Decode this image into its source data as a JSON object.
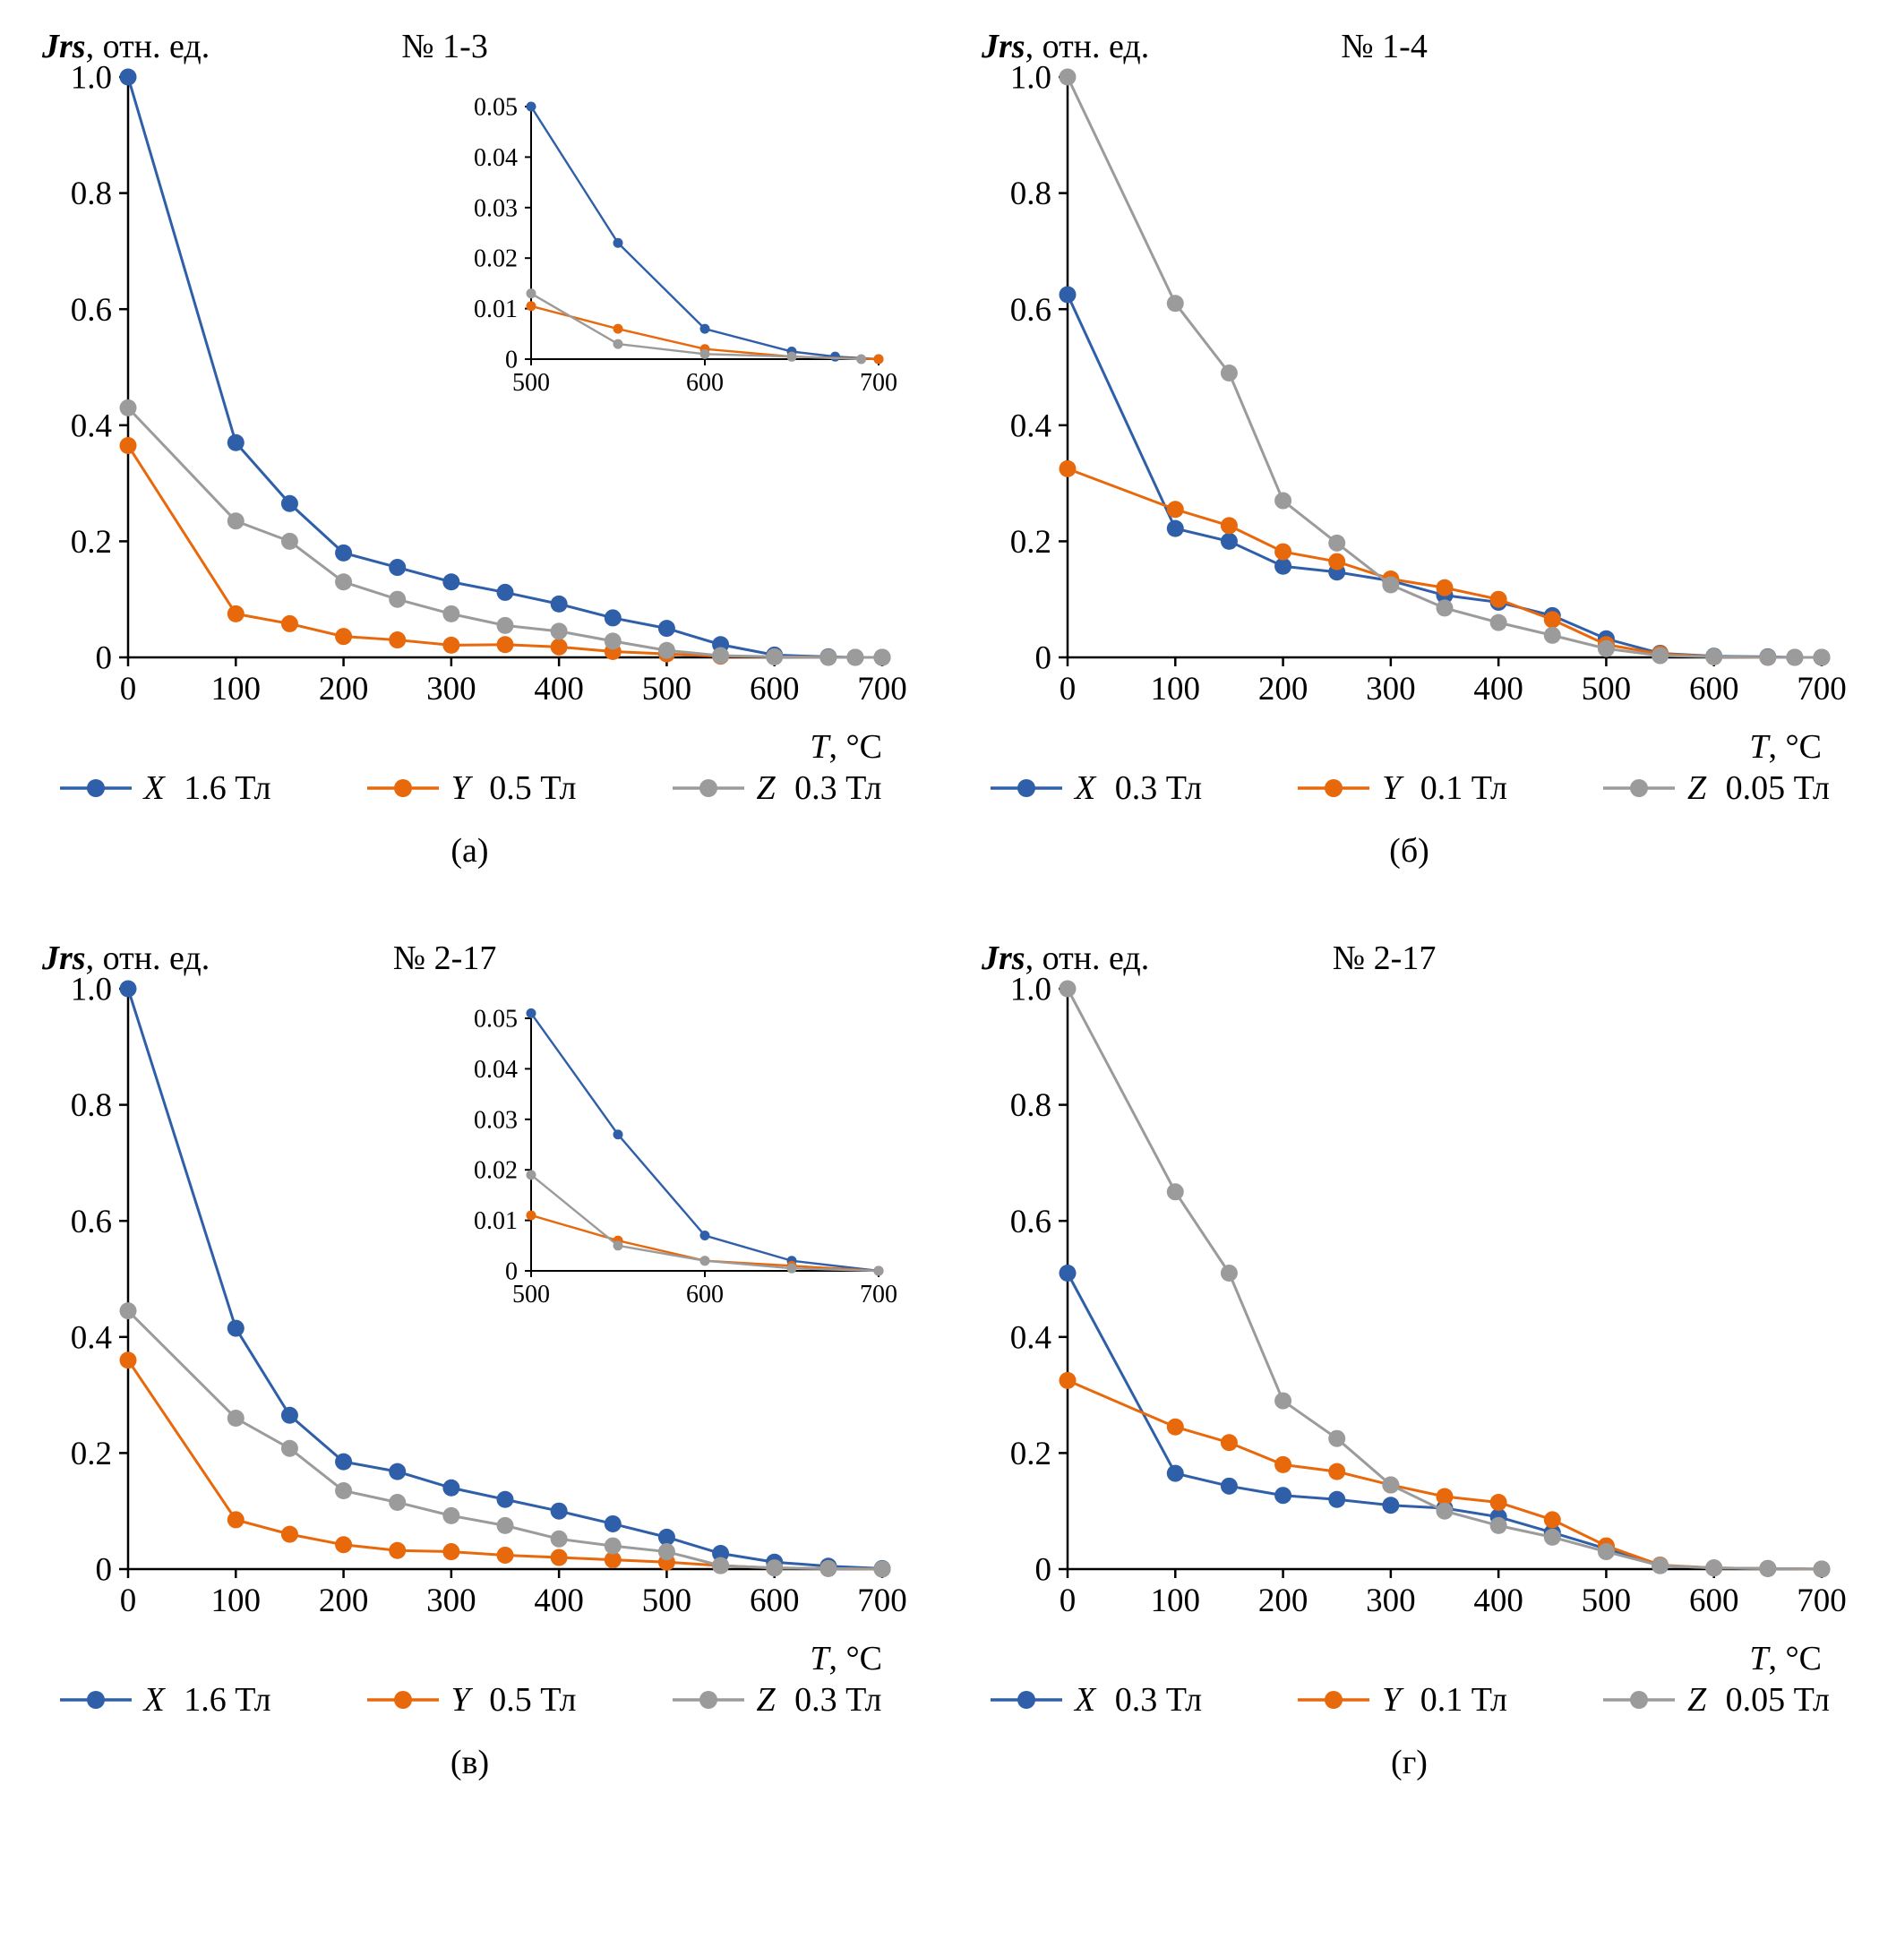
{
  "palette": {
    "blue": "#2f5fa8",
    "orange": "#e8680c",
    "gray": "#9b9b9b"
  },
  "labels": {
    "ylabel_main": "Jrs",
    "ylabel_rest": ", отн. ед.",
    "xlabel_main": "T",
    "xlabel_rest": ", °C"
  },
  "chart_data": [
    {
      "id": "a",
      "type": "line",
      "title": "№ 1-3",
      "caption": "(а)",
      "xlabel": "T, °C",
      "ylabel": "Jrs, отн. ед.",
      "xlim": [
        0,
        700
      ],
      "ylim": [
        0,
        1.0
      ],
      "grid": false,
      "legend_position": "bottom",
      "xticks": [
        [
          0,
          "0"
        ],
        [
          100,
          "100"
        ],
        [
          200,
          "200"
        ],
        [
          300,
          "300"
        ],
        [
          400,
          "400"
        ],
        [
          500,
          "500"
        ],
        [
          600,
          "600"
        ],
        [
          700,
          "700"
        ]
      ],
      "yticks": [
        [
          0,
          "0"
        ],
        [
          0.2,
          "0.2"
        ],
        [
          0.4,
          "0.4"
        ],
        [
          0.6,
          "0.6"
        ],
        [
          0.8,
          "0.8"
        ],
        [
          1.0,
          "1.0"
        ]
      ],
      "series": [
        {
          "name": "X 1.6 Тл",
          "label_var": "X",
          "label_rest": " 1.6 Тл",
          "color": "blue",
          "x": [
            0,
            100,
            150,
            200,
            250,
            300,
            350,
            400,
            450,
            500,
            550,
            600,
            650,
            675,
            700
          ],
          "y": [
            1.0,
            0.37,
            0.265,
            0.18,
            0.155,
            0.13,
            0.112,
            0.092,
            0.068,
            0.05,
            0.022,
            0.004,
            0.001,
            0.0,
            0.0
          ]
        },
        {
          "name": "Y 0.5 Тл",
          "label_var": "Y",
          "label_rest": " 0.5 Тл",
          "color": "orange",
          "x": [
            0,
            100,
            150,
            200,
            250,
            300,
            350,
            400,
            450,
            500,
            550,
            600,
            650,
            675,
            700
          ],
          "y": [
            0.365,
            0.075,
            0.058,
            0.036,
            0.03,
            0.021,
            0.022,
            0.018,
            0.01,
            0.006,
            0.002,
            0.001,
            0.0,
            0.0,
            0.0
          ]
        },
        {
          "name": "Z 0.3 Тл",
          "label_var": "Z",
          "label_rest": " 0.3 Тл",
          "color": "gray",
          "x": [
            0,
            100,
            150,
            200,
            250,
            300,
            350,
            400,
            450,
            500,
            550,
            600,
            650,
            675,
            700
          ],
          "y": [
            0.43,
            0.235,
            0.2,
            0.13,
            0.1,
            0.075,
            0.055,
            0.045,
            0.028,
            0.012,
            0.003,
            0.001,
            0.0,
            0.0,
            0.0
          ]
        }
      ],
      "inset": {
        "xlim": [
          500,
          700
        ],
        "ylim": [
          0,
          0.05
        ],
        "xticks": [
          [
            500,
            "500"
          ],
          [
            600,
            "600"
          ],
          [
            700,
            "700"
          ]
        ],
        "yticks": [
          [
            0,
            "0"
          ],
          [
            0.01,
            "0.01"
          ],
          [
            0.02,
            "0.02"
          ],
          [
            0.03,
            "0.03"
          ],
          [
            0.04,
            "0.04"
          ],
          [
            0.05,
            "0.05"
          ]
        ],
        "series": [
          {
            "name": "X 1.6 Тл",
            "color": "blue",
            "x": [
              500,
              550,
              600,
              650,
              675,
              700
            ],
            "y": [
              0.05,
              0.023,
              0.006,
              0.0015,
              0.0005,
              0.0
            ]
          },
          {
            "name": "Y 0.5 Тл",
            "color": "orange",
            "x": [
              500,
              550,
              600,
              650,
              700
            ],
            "y": [
              0.0105,
              0.006,
              0.002,
              0.0005,
              0.0
            ]
          },
          {
            "name": "Z 0.3 Тл",
            "color": "gray",
            "x": [
              500,
              550,
              600,
              650,
              690
            ],
            "y": [
              0.013,
              0.003,
              0.001,
              0.0005,
              0.0
            ]
          }
        ]
      }
    },
    {
      "id": "b",
      "type": "line",
      "title": "№ 1-4",
      "caption": "(б)",
      "xlabel": "T, °C",
      "ylabel": "Jrs, отн. ед.",
      "xlim": [
        0,
        700
      ],
      "ylim": [
        0,
        1.0
      ],
      "grid": false,
      "legend_position": "bottom",
      "xticks": [
        [
          0,
          "0"
        ],
        [
          100,
          "100"
        ],
        [
          200,
          "200"
        ],
        [
          300,
          "300"
        ],
        [
          400,
          "400"
        ],
        [
          500,
          "500"
        ],
        [
          600,
          "600"
        ],
        [
          700,
          "700"
        ]
      ],
      "yticks": [
        [
          0,
          "0"
        ],
        [
          0.2,
          "0.2"
        ],
        [
          0.4,
          "0.4"
        ],
        [
          0.6,
          "0.6"
        ],
        [
          0.8,
          "0.8"
        ],
        [
          1.0,
          "1.0"
        ]
      ],
      "series": [
        {
          "name": "X 0.3 Тл",
          "label_var": "X",
          "label_rest": " 0.3 Тл",
          "color": "blue",
          "x": [
            0,
            100,
            150,
            200,
            250,
            300,
            350,
            400,
            450,
            500,
            550,
            600,
            650,
            675,
            700
          ],
          "y": [
            0.625,
            0.222,
            0.2,
            0.157,
            0.147,
            0.132,
            0.107,
            0.095,
            0.072,
            0.032,
            0.007,
            0.002,
            0.001,
            0.0,
            0.0
          ]
        },
        {
          "name": "Y 0.1 Тл",
          "label_var": "Y",
          "label_rest": " 0.1 Тл",
          "color": "orange",
          "x": [
            0,
            100,
            150,
            200,
            250,
            300,
            350,
            400,
            450,
            500,
            550,
            600,
            650,
            675,
            700
          ],
          "y": [
            0.325,
            0.255,
            0.227,
            0.182,
            0.165,
            0.135,
            0.12,
            0.1,
            0.065,
            0.022,
            0.006,
            0.001,
            0.0,
            0.0,
            0.0
          ]
        },
        {
          "name": "Z 0.05 Тл",
          "label_var": "Z",
          "label_rest": " 0.05 Тл",
          "color": "gray",
          "x": [
            0,
            100,
            150,
            200,
            250,
            300,
            350,
            400,
            450,
            500,
            550,
            600,
            650,
            675,
            700
          ],
          "y": [
            1.0,
            0.61,
            0.49,
            0.27,
            0.197,
            0.125,
            0.085,
            0.06,
            0.038,
            0.015,
            0.003,
            0.001,
            0.0,
            0.0,
            0.0
          ]
        }
      ]
    },
    {
      "id": "v",
      "type": "line",
      "title": "№ 2-17",
      "caption": "(в)",
      "xlabel": "T, °C",
      "ylabel": "Jrs, отн. ед.",
      "xlim": [
        0,
        700
      ],
      "ylim": [
        0,
        1.0
      ],
      "grid": false,
      "legend_position": "bottom",
      "xticks": [
        [
          0,
          "0"
        ],
        [
          100,
          "100"
        ],
        [
          200,
          "200"
        ],
        [
          300,
          "300"
        ],
        [
          400,
          "400"
        ],
        [
          500,
          "500"
        ],
        [
          600,
          "600"
        ],
        [
          700,
          "700"
        ]
      ],
      "yticks": [
        [
          0,
          "0"
        ],
        [
          0.2,
          "0.2"
        ],
        [
          0.4,
          "0.4"
        ],
        [
          0.6,
          "0.6"
        ],
        [
          0.8,
          "0.8"
        ],
        [
          1.0,
          "1.0"
        ]
      ],
      "series": [
        {
          "name": "X 1.6 Тл",
          "label_var": "X",
          "label_rest": " 1.6 Тл",
          "color": "blue",
          "x": [
            0,
            100,
            150,
            200,
            250,
            300,
            350,
            400,
            450,
            500,
            550,
            600,
            650,
            700
          ],
          "y": [
            1.0,
            0.415,
            0.265,
            0.185,
            0.168,
            0.14,
            0.12,
            0.1,
            0.078,
            0.055,
            0.027,
            0.012,
            0.005,
            0.001
          ]
        },
        {
          "name": "Y 0.5 Тл",
          "label_var": "Y",
          "label_rest": " 0.5 Тл",
          "color": "orange",
          "x": [
            0,
            100,
            150,
            200,
            250,
            300,
            350,
            400,
            450,
            500,
            550,
            600,
            650,
            700
          ],
          "y": [
            0.36,
            0.085,
            0.06,
            0.042,
            0.032,
            0.03,
            0.024,
            0.02,
            0.016,
            0.012,
            0.006,
            0.002,
            0.001,
            0.0
          ]
        },
        {
          "name": "Z 0.3 Тл",
          "label_var": "Z",
          "label_rest": " 0.3 Тл",
          "color": "gray",
          "x": [
            0,
            100,
            150,
            200,
            250,
            300,
            350,
            400,
            450,
            500,
            550,
            600,
            650,
            700
          ],
          "y": [
            0.445,
            0.26,
            0.208,
            0.135,
            0.115,
            0.092,
            0.075,
            0.052,
            0.04,
            0.03,
            0.006,
            0.002,
            0.001,
            0.0
          ]
        }
      ],
      "inset": {
        "xlim": [
          500,
          700
        ],
        "ylim": [
          0,
          0.05
        ],
        "xticks": [
          [
            500,
            "500"
          ],
          [
            600,
            "600"
          ],
          [
            700,
            "700"
          ]
        ],
        "yticks": [
          [
            0,
            "0"
          ],
          [
            0.01,
            "0.01"
          ],
          [
            0.02,
            "0.02"
          ],
          [
            0.03,
            "0.03"
          ],
          [
            0.04,
            "0.04"
          ],
          [
            0.05,
            "0.05"
          ]
        ],
        "series": [
          {
            "name": "X 1.6 Тл",
            "color": "blue",
            "x": [
              500,
              550,
              600,
              650,
              700
            ],
            "y": [
              0.051,
              0.027,
              0.007,
              0.002,
              0.0
            ]
          },
          {
            "name": "Y 0.5 Тл",
            "color": "orange",
            "x": [
              500,
              550,
              600,
              650,
              700
            ],
            "y": [
              0.011,
              0.006,
              0.002,
              0.001,
              0.0
            ]
          },
          {
            "name": "Z 0.3 Тл",
            "color": "gray",
            "x": [
              500,
              550,
              600,
              650,
              700
            ],
            "y": [
              0.019,
              0.005,
              0.002,
              0.0005,
              0.0
            ]
          }
        ]
      }
    },
    {
      "id": "g",
      "type": "line",
      "title": "№ 2-17",
      "caption": "(г)",
      "xlabel": "T, °C",
      "ylabel": "Jrs, отн. ед.",
      "xlim": [
        0,
        700
      ],
      "ylim": [
        0,
        1.0
      ],
      "grid": false,
      "legend_position": "bottom",
      "xticks": [
        [
          0,
          "0"
        ],
        [
          100,
          "100"
        ],
        [
          200,
          "200"
        ],
        [
          300,
          "300"
        ],
        [
          400,
          "400"
        ],
        [
          500,
          "500"
        ],
        [
          600,
          "600"
        ],
        [
          700,
          "700"
        ]
      ],
      "yticks": [
        [
          0,
          "0"
        ],
        [
          0.2,
          "0.2"
        ],
        [
          0.4,
          "0.4"
        ],
        [
          0.6,
          "0.6"
        ],
        [
          0.8,
          "0.8"
        ],
        [
          1.0,
          "1.0"
        ]
      ],
      "series": [
        {
          "name": "X 0.3 Тл",
          "label_var": "X",
          "label_rest": " 0.3 Тл",
          "color": "blue",
          "x": [
            0,
            100,
            150,
            200,
            250,
            300,
            350,
            400,
            450,
            500,
            550,
            600,
            650,
            700
          ],
          "y": [
            0.51,
            0.165,
            0.143,
            0.127,
            0.12,
            0.11,
            0.105,
            0.09,
            0.063,
            0.035,
            0.006,
            0.002,
            0.001,
            0.0
          ]
        },
        {
          "name": "Y 0.1 Тл",
          "label_var": "Y",
          "label_rest": " 0.1 Тл",
          "color": "orange",
          "x": [
            0,
            100,
            150,
            200,
            250,
            300,
            350,
            400,
            450,
            500,
            550,
            600,
            650,
            700
          ],
          "y": [
            0.325,
            0.245,
            0.218,
            0.18,
            0.168,
            0.145,
            0.125,
            0.115,
            0.085,
            0.04,
            0.007,
            0.002,
            0.001,
            0.0
          ]
        },
        {
          "name": "Z 0.05 Тл",
          "label_var": "Z",
          "label_rest": " 0.05 Тл",
          "color": "gray",
          "x": [
            0,
            100,
            150,
            200,
            250,
            300,
            350,
            400,
            450,
            500,
            550,
            600,
            650,
            700
          ],
          "y": [
            1.0,
            0.65,
            0.51,
            0.29,
            0.225,
            0.145,
            0.1,
            0.075,
            0.055,
            0.03,
            0.006,
            0.002,
            0.001,
            0.0
          ]
        }
      ]
    }
  ]
}
